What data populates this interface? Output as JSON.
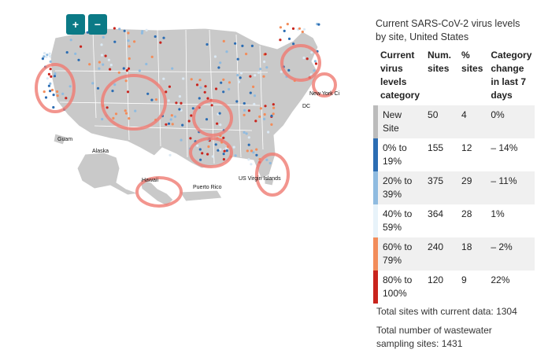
{
  "map": {
    "zoom_in": "+",
    "zoom_out": "−",
    "labels": {
      "new_york_city": "New York Ci",
      "dc": "DC",
      "guam": "Guam",
      "alaska": "Alaska",
      "hawaii": "Hawaii",
      "puerto_rico": "Puerto Rico",
      "us_virgin_islands": "US Virgin Islands"
    }
  },
  "legend": {
    "title": "Current SARS-CoV-2 virus levels by site, United States",
    "headers": {
      "category": "Current virus levels category",
      "num_sites": "Num. sites",
      "pct_sites": "% sites",
      "change": "Category change in last 7 days"
    },
    "rows": [
      {
        "category": "New Site",
        "num": "50",
        "pct": "4",
        "change": "0%",
        "color": "#ffffff"
      },
      {
        "category": "0% to 19%",
        "num": "155",
        "pct": "12",
        "change": "– 14%",
        "color": "#2c6db3"
      },
      {
        "category": "20% to 39%",
        "num": "375",
        "pct": "29",
        "change": "– 11%",
        "color": "#8fbbe0"
      },
      {
        "category": "40% to 59%",
        "num": "364",
        "pct": "28",
        "change": "1%",
        "color": "#e8f3fa"
      },
      {
        "category": "60% to 79%",
        "num": "240",
        "pct": "18",
        "change": "– 2%",
        "color": "#f28c5a"
      },
      {
        "category": "80% to 100%",
        "num": "120",
        "pct": "9",
        "change": "22%",
        "color": "#c9241d"
      }
    ]
  },
  "totals": {
    "current": "Total sites with current data: 1304",
    "total": "Total number of wastewater sampling sites: 1431"
  },
  "colors": {
    "land": "#c9c9c9",
    "annotation_circle": "#f07b72",
    "accent": "#0b7a86"
  }
}
